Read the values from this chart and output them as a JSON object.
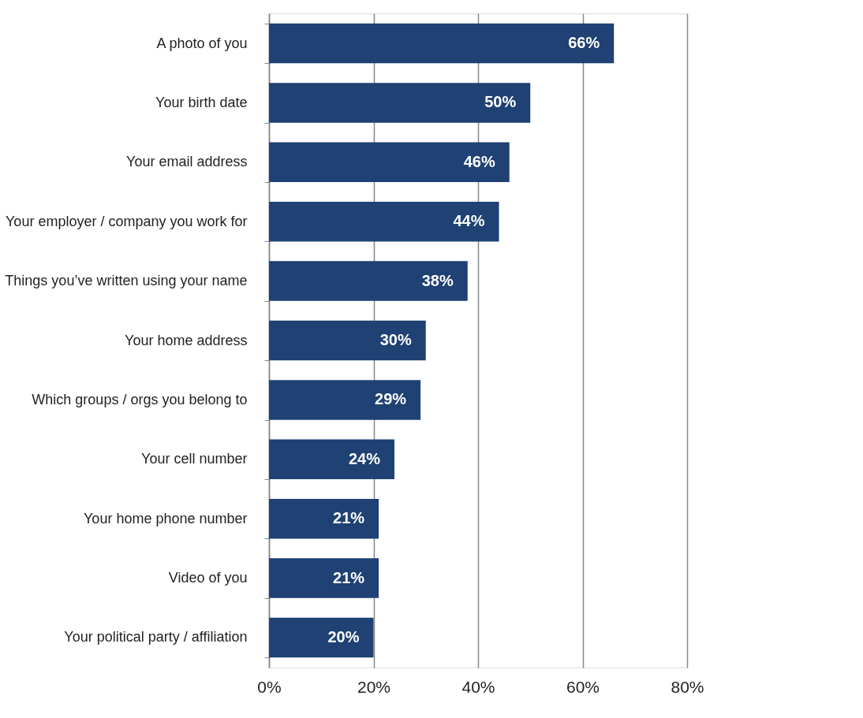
{
  "chart_data": {
    "type": "bar",
    "orientation": "horizontal",
    "categories": [
      "A photo of you",
      "Your birth date",
      "Your email address",
      "Your employer / company you work for",
      "Things you’ve written using your name",
      "Your home address",
      "Which groups / orgs you belong to",
      "Your cell number",
      "Your home phone number",
      "Video of you",
      "Your political party / affiliation"
    ],
    "values": [
      66,
      50,
      46,
      44,
      38,
      30,
      29,
      24,
      21,
      21,
      20
    ],
    "value_labels": [
      "66%",
      "50%",
      "46%",
      "44%",
      "38%",
      "30%",
      "29%",
      "24%",
      "21%",
      "21%",
      "20%"
    ],
    "color": "#1f4173",
    "xlim": [
      0,
      80
    ],
    "xticks": [
      {
        "value": 0,
        "label": "0%"
      },
      {
        "value": 20,
        "label": "20%"
      },
      {
        "value": 40,
        "label": "40%"
      },
      {
        "value": 60,
        "label": "60%"
      },
      {
        "value": 80,
        "label": "80%"
      }
    ],
    "grid": "x"
  }
}
